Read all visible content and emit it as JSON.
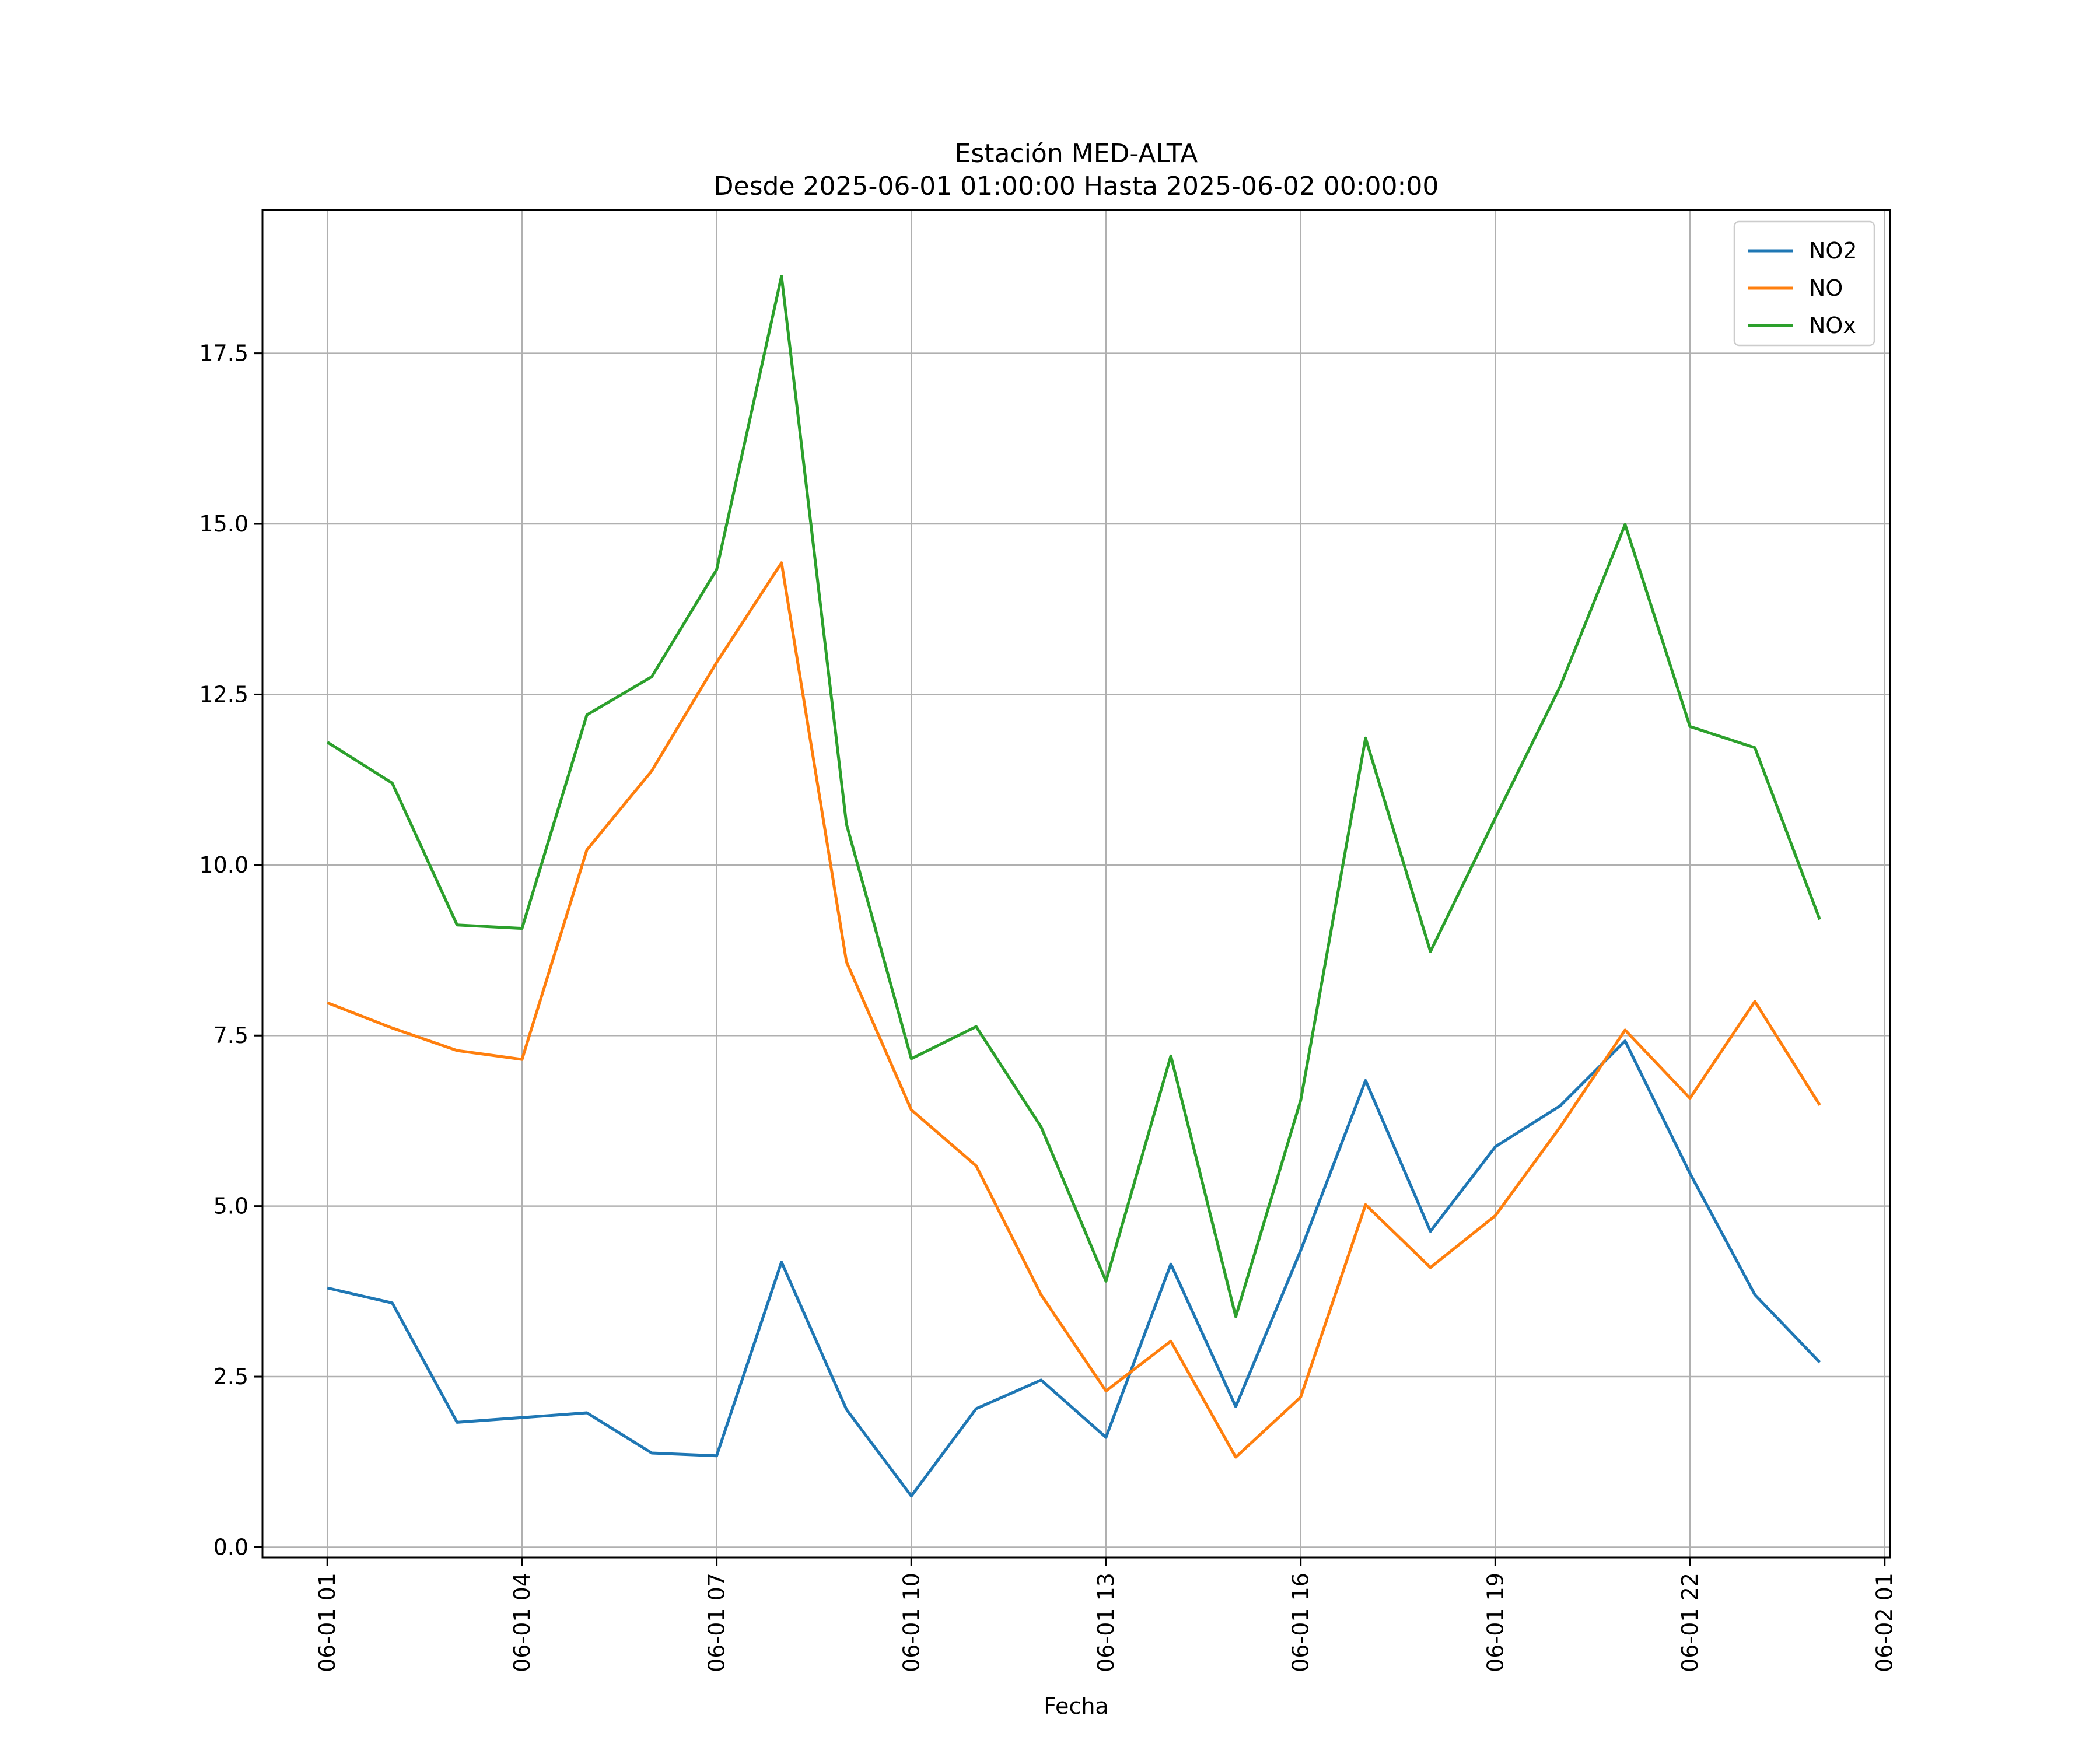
{
  "chart_data": {
    "type": "line",
    "title": "Estación MED-ALTA",
    "subtitle": "Desde 2025-06-01 01:00:00 Hasta 2025-06-02 00:00:00",
    "xlabel": "Fecha",
    "ylabel": "",
    "x": [
      "2025-06-01 01:00",
      "2025-06-01 02:00",
      "2025-06-01 03:00",
      "2025-06-01 04:00",
      "2025-06-01 05:00",
      "2025-06-01 06:00",
      "2025-06-01 07:00",
      "2025-06-01 08:00",
      "2025-06-01 09:00",
      "2025-06-01 10:00",
      "2025-06-01 11:00",
      "2025-06-01 12:00",
      "2025-06-01 13:00",
      "2025-06-01 14:00",
      "2025-06-01 15:00",
      "2025-06-01 16:00",
      "2025-06-01 17:00",
      "2025-06-01 18:00",
      "2025-06-01 19:00",
      "2025-06-01 20:00",
      "2025-06-01 21:00",
      "2025-06-01 22:00",
      "2025-06-01 23:00",
      "2025-06-02 00:00"
    ],
    "xlim": [
      "2025-06-01 00:00",
      "2025-06-02 01:05"
    ],
    "ylim": [
      -0.15,
      19.6
    ],
    "x_ticks": [
      {
        "value": "2025-06-01 01:00",
        "label": "06-01 01"
      },
      {
        "value": "2025-06-01 04:00",
        "label": "06-01 04"
      },
      {
        "value": "2025-06-01 07:00",
        "label": "06-01 07"
      },
      {
        "value": "2025-06-01 10:00",
        "label": "06-01 10"
      },
      {
        "value": "2025-06-01 13:00",
        "label": "06-01 13"
      },
      {
        "value": "2025-06-01 16:00",
        "label": "06-01 16"
      },
      {
        "value": "2025-06-01 19:00",
        "label": "06-01 19"
      },
      {
        "value": "2025-06-01 22:00",
        "label": "06-01 22"
      },
      {
        "value": "2025-06-02 01:00",
        "label": "06-02 01"
      }
    ],
    "y_ticks": [
      {
        "value": 0.0,
        "label": "0.0"
      },
      {
        "value": 2.5,
        "label": "2.5"
      },
      {
        "value": 5.0,
        "label": "5.0"
      },
      {
        "value": 7.5,
        "label": "7.5"
      },
      {
        "value": 10.0,
        "label": "10.0"
      },
      {
        "value": 12.5,
        "label": "12.5"
      },
      {
        "value": 15.0,
        "label": "15.0"
      },
      {
        "value": 17.5,
        "label": "17.5"
      }
    ],
    "grid": true,
    "legend_position": "top-right",
    "series": [
      {
        "name": "NO2",
        "color": "#1f77b4",
        "values": [
          3.8,
          3.58,
          1.83,
          1.9,
          1.97,
          1.38,
          1.34,
          4.18,
          2.02,
          0.75,
          2.03,
          2.45,
          1.61,
          4.15,
          2.06,
          4.35,
          6.84,
          4.63,
          5.87,
          6.47,
          7.42,
          5.48,
          3.7,
          2.71
        ]
      },
      {
        "name": "NO",
        "color": "#ff7f0e",
        "values": [
          7.98,
          7.61,
          7.28,
          7.15,
          10.22,
          11.38,
          12.97,
          14.43,
          8.58,
          6.41,
          5.59,
          3.7,
          2.29,
          3.02,
          1.32,
          2.2,
          5.02,
          4.1,
          4.86,
          6.16,
          7.58,
          6.58,
          8.0,
          6.48
        ]
      },
      {
        "name": "NOx",
        "color": "#2ca02c",
        "values": [
          11.8,
          11.2,
          9.12,
          9.07,
          12.2,
          12.76,
          14.33,
          18.63,
          10.6,
          7.16,
          7.63,
          6.16,
          3.9,
          7.2,
          3.38,
          6.55,
          11.86,
          8.73,
          10.69,
          12.62,
          14.99,
          12.03,
          11.72,
          9.2
        ]
      }
    ]
  }
}
